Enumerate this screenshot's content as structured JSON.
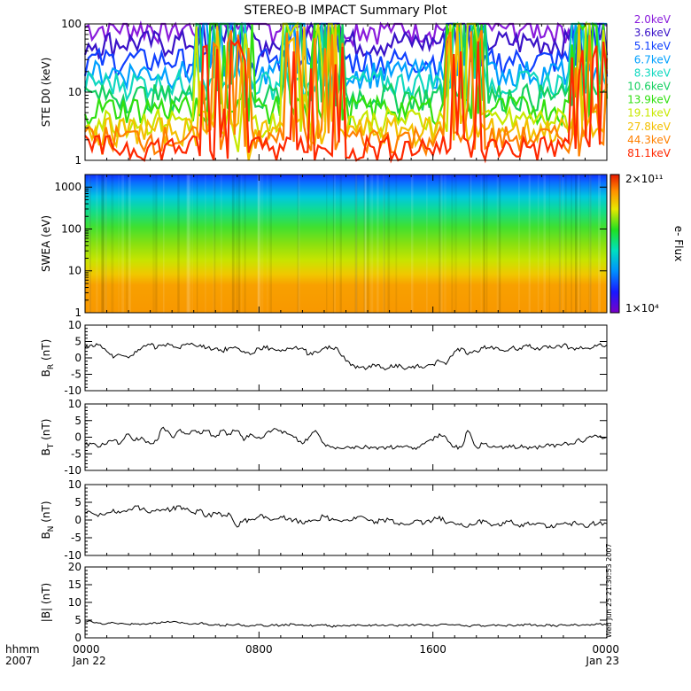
{
  "title": "STEREO-B IMPACT Summary Plot",
  "time_axis": {
    "ticks": [
      {
        "top": "0000",
        "bottom": "Jan 22",
        "hour": 0
      },
      {
        "top": "0800",
        "bottom": "",
        "hour": 8
      },
      {
        "top": "1600",
        "bottom": "",
        "hour": 16
      },
      {
        "top": "0000",
        "bottom": "Jan 23",
        "hour": 24
      }
    ],
    "left_label_top": "hhmm",
    "left_label_bottom": "2007"
  },
  "footer_stamp": "Wed Jun 25 21:30:53 2007",
  "colorbar": {
    "label": "e- Flux",
    "max_label": "2×10¹¹",
    "min_label": "1×10⁴"
  },
  "chart_data": [
    {
      "type": "line",
      "name": "ste",
      "ylabel": "STE D0 (keV)",
      "yscale": "log",
      "ylim": [
        1,
        100
      ],
      "yticks": [
        "1",
        "10",
        "100"
      ],
      "channels": [
        {
          "name": "2.0keV",
          "color": "#8a1cdc",
          "level": 90
        },
        {
          "name": "3.6keV",
          "color": "#3a12c8",
          "level": 55
        },
        {
          "name": "5.1keV",
          "color": "#1040ff",
          "level": 30
        },
        {
          "name": "6.7keV",
          "color": "#00a0ff",
          "level": 20
        },
        {
          "name": "8.3keV",
          "color": "#10d8c0",
          "level": 14
        },
        {
          "name": "10.6keV",
          "color": "#14d060",
          "level": 9
        },
        {
          "name": "13.9keV",
          "color": "#30e010",
          "level": 6
        },
        {
          "name": "19.1keV",
          "color": "#c8e800",
          "level": 4
        },
        {
          "name": "27.8keV",
          "color": "#f4c000",
          "level": 2.9
        },
        {
          "name": "44.3keV",
          "color": "#ff8000",
          "level": 2.2
        },
        {
          "name": "81.1keV",
          "color": "#ff2800",
          "level": 1.6
        }
      ]
    },
    {
      "type": "heatmap",
      "name": "swea",
      "ylabel": "SWEA (eV)",
      "yscale": "log",
      "ylim": [
        1,
        2000
      ],
      "yticks": [
        "1",
        "10",
        "100",
        "1000"
      ]
    },
    {
      "type": "line",
      "name": "br",
      "ylabel": "B",
      "ylabel_sub": "R",
      "ylabel_unit": " (nT)",
      "ylim": [
        -10,
        10
      ],
      "yticks": [
        "-10",
        "-5",
        "0",
        "5",
        "10"
      ],
      "x": [
        0,
        0.3,
        0.6,
        1,
        1.3,
        1.6,
        2,
        2.3,
        2.6,
        3,
        3.3,
        3.6,
        4,
        4.3,
        4.6,
        5,
        5.3,
        5.6,
        6,
        6.3,
        6.6,
        7,
        7.3,
        7.6,
        8,
        8.3,
        8.6,
        9,
        9.3,
        9.6,
        10,
        10.3,
        10.6,
        11,
        11.3,
        11.6,
        12,
        12.3,
        12.6,
        13,
        13.3,
        13.6,
        14,
        14.3,
        14.6,
        15,
        15.3,
        15.6,
        16,
        16.3,
        16.6,
        17,
        17.3,
        17.6,
        18,
        18.3,
        18.6,
        19,
        19.3,
        19.6,
        20,
        20.3,
        20.6,
        21,
        21.3,
        21.6,
        22,
        22.3,
        22.6,
        23,
        23.3,
        23.6,
        24
      ],
      "y": [
        3,
        4,
        4,
        2,
        0,
        1,
        0,
        2,
        3,
        4,
        3,
        4,
        4,
        3,
        4,
        4,
        4,
        3,
        3,
        2,
        3,
        3,
        2,
        1,
        3,
        3,
        3,
        2,
        3,
        3,
        3,
        1,
        2,
        3,
        3,
        3,
        -1,
        -2,
        -3,
        -3,
        -2,
        -3,
        -3,
        -2,
        -3,
        -3,
        -2,
        -3,
        -2,
        -1,
        -2,
        2,
        3,
        1,
        2,
        3,
        3,
        3,
        2,
        3,
        3,
        4,
        3,
        3,
        3,
        3,
        4,
        3,
        3,
        3,
        3,
        4,
        4
      ]
    },
    {
      "type": "line",
      "name": "bt",
      "ylabel": "B",
      "ylabel_sub": "T",
      "ylabel_unit": " (nT)",
      "ylim": [
        -10,
        10
      ],
      "yticks": [
        "-10",
        "-5",
        "0",
        "5",
        "10"
      ],
      "x": [
        0,
        0.3,
        0.6,
        1,
        1.3,
        1.6,
        2,
        2.3,
        2.6,
        3,
        3.3,
        3.6,
        4,
        4.3,
        4.6,
        5,
        5.3,
        5.6,
        6,
        6.3,
        6.6,
        7,
        7.3,
        7.6,
        8,
        8.3,
        8.6,
        9,
        9.3,
        9.6,
        10,
        10.3,
        10.6,
        11,
        11.3,
        11.6,
        12,
        12.3,
        12.6,
        13,
        13.3,
        13.6,
        14,
        14.3,
        14.6,
        15,
        15.3,
        15.6,
        16,
        16.3,
        16.6,
        17,
        17.3,
        17.6,
        18,
        18.3,
        18.6,
        19,
        19.3,
        19.6,
        20,
        20.3,
        20.6,
        21,
        21.3,
        21.6,
        22,
        22.3,
        22.6,
        23,
        23.3,
        23.6,
        24
      ],
      "y": [
        -2,
        -2,
        -3,
        -2,
        -1,
        -2,
        1,
        -1,
        0,
        -2,
        -1,
        3,
        0,
        2,
        1,
        2,
        1,
        2,
        0,
        2,
        1,
        2,
        -1,
        1,
        0,
        1,
        2,
        2,
        1,
        0,
        -2,
        0,
        2,
        -2,
        -3,
        -3,
        -3,
        -3,
        -3,
        -3,
        -3,
        -3,
        -3,
        -3,
        -3,
        -3,
        -3,
        -2,
        -1,
        1,
        0,
        -3,
        -3,
        2,
        -3,
        -2,
        -3,
        -3,
        -3,
        -3,
        -3,
        -3,
        -3,
        -3,
        -2,
        -3,
        -2,
        -2,
        -1,
        -1,
        0,
        0,
        0
      ]
    },
    {
      "type": "line",
      "name": "bn",
      "ylabel": "B",
      "ylabel_sub": "N",
      "ylabel_unit": " (nT)",
      "ylim": [
        -10,
        10
      ],
      "yticks": [
        "-10",
        "-5",
        "0",
        "5",
        "10"
      ],
      "x": [
        0,
        0.3,
        0.6,
        1,
        1.3,
        1.6,
        2,
        2.3,
        2.6,
        3,
        3.3,
        3.6,
        4,
        4.3,
        4.6,
        5,
        5.3,
        5.6,
        6,
        6.3,
        6.6,
        7,
        7.3,
        7.6,
        8,
        8.3,
        8.6,
        9,
        9.3,
        9.6,
        10,
        10.3,
        10.6,
        11,
        11.3,
        11.6,
        12,
        12.3,
        12.6,
        13,
        13.3,
        13.6,
        14,
        14.3,
        14.6,
        15,
        15.3,
        15.6,
        16,
        16.3,
        16.6,
        17,
        17.3,
        17.6,
        18,
        18.3,
        18.6,
        19,
        19.3,
        19.6,
        20,
        20.3,
        20.6,
        21,
        21.3,
        21.6,
        22,
        22.3,
        22.6,
        23,
        23.3,
        23.6,
        24
      ],
      "y": [
        2,
        2,
        1,
        2,
        3,
        2,
        3,
        4,
        3,
        2,
        3,
        3,
        3,
        4,
        3,
        2,
        3,
        1,
        2,
        1,
        2,
        -2,
        0,
        0,
        1,
        1,
        0,
        1,
        0,
        0,
        -1,
        0,
        0,
        1,
        0,
        0,
        0,
        0,
        1,
        0,
        -1,
        0,
        0,
        -1,
        -1,
        -1,
        0,
        -1,
        0,
        1,
        -1,
        -1,
        -1,
        -2,
        -1,
        0,
        -1,
        -1,
        -1,
        0,
        -2,
        -1,
        -1,
        -1,
        -2,
        -2,
        -1,
        -1,
        -1,
        -2,
        -1,
        -1,
        -1
      ]
    },
    {
      "type": "line",
      "name": "bmag",
      "ylabel": "|B| (nT)",
      "ylim": [
        0,
        20
      ],
      "yticks": [
        "0",
        "5",
        "10",
        "15",
        "20"
      ],
      "x": [
        0,
        0.3,
        0.6,
        1,
        1.3,
        1.6,
        2,
        2.3,
        2.6,
        3,
        3.3,
        3.6,
        4,
        4.3,
        4.6,
        5,
        5.3,
        5.6,
        6,
        6.3,
        6.6,
        7,
        7.3,
        7.6,
        8,
        8.3,
        8.6,
        9,
        9.3,
        9.6,
        10,
        10.3,
        10.6,
        11,
        11.3,
        11.6,
        12,
        12.3,
        12.6,
        13,
        13.3,
        13.6,
        14,
        14.3,
        14.6,
        15,
        15.3,
        15.6,
        16,
        16.3,
        16.6,
        17,
        17.3,
        17.6,
        18,
        18.3,
        18.6,
        19,
        19.3,
        19.6,
        20,
        20.3,
        20.6,
        21,
        21.3,
        21.6,
        22,
        22.3,
        22.6,
        23,
        23.3,
        23.6,
        24
      ],
      "y": [
        4.5,
        4.6,
        4.2,
        4,
        4.3,
        4.1,
        3.8,
        4,
        3.9,
        4.2,
        4,
        4.4,
        4.5,
        4.3,
        4.1,
        4,
        4.2,
        3.9,
        3.8,
        3.5,
        3.7,
        3.9,
        3.6,
        3.4,
        3.7,
        3.3,
        3.8,
        3.5,
        3.6,
        3.9,
        3.7,
        3.4,
        3.5,
        3.6,
        3.2,
        3.5,
        3.4,
        3.6,
        3.7,
        3.4,
        3.6,
        3.5,
        3.7,
        3.4,
        3.5,
        3.6,
        3.8,
        3.5,
        3.4,
        3.7,
        3.9,
        3.6,
        3.5,
        3.3,
        3.6,
        3.4,
        3.5,
        3.7,
        3.4,
        3.6,
        3.5,
        3.8,
        3.6,
        3.5,
        3.7,
        3.4,
        3.6,
        3.5,
        3.7,
        3.6,
        3.8,
        3.9,
        3.6
      ]
    }
  ]
}
